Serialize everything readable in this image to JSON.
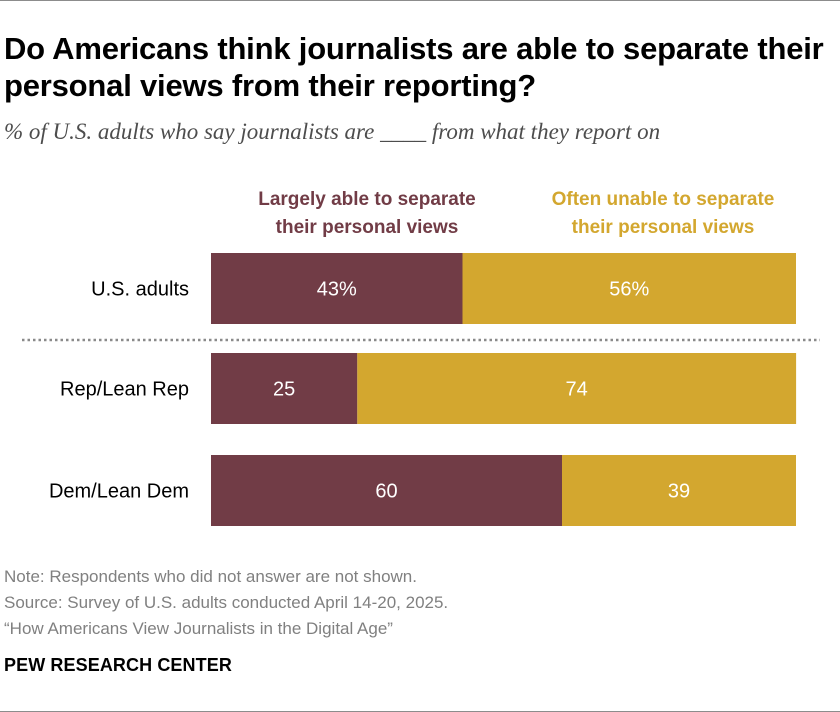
{
  "header": {
    "title": "Do Americans think journalists are able to separate their personal views from their reporting?",
    "subtitle": "% of U.S. adults who say journalists are ____ from what they report on"
  },
  "chart_data": {
    "type": "bar",
    "orientation": "horizontal",
    "stacked": true,
    "categories": [
      "U.S. adults",
      "Rep/Lean Rep",
      "Dem/Lean Dem"
    ],
    "series": [
      {
        "name": "Largely able to separate their personal views",
        "name_lines": [
          "Largely able to separate",
          "their personal views"
        ],
        "values": [
          43,
          25,
          60
        ],
        "labels": [
          "43%",
          "25",
          "60"
        ],
        "color": "#713c46"
      },
      {
        "name": "Often unable to separate their personal views",
        "name_lines": [
          "Often unable to separate",
          "their personal views"
        ],
        "values": [
          56,
          74,
          39
        ],
        "labels": [
          "56%",
          "74",
          "39"
        ],
        "color": "#d3a72f"
      }
    ],
    "xlim": [
      0,
      100
    ],
    "separator_after_category": 0,
    "xlabel": "",
    "ylabel": ""
  },
  "footer": {
    "note": "Note: Respondents who did not answer are not shown.",
    "source": "Source: Survey of U.S. adults conducted April 14-20, 2025.",
    "report": "“How Americans View Journalists in the Digital Age”",
    "org": "PEW RESEARCH CENTER"
  }
}
